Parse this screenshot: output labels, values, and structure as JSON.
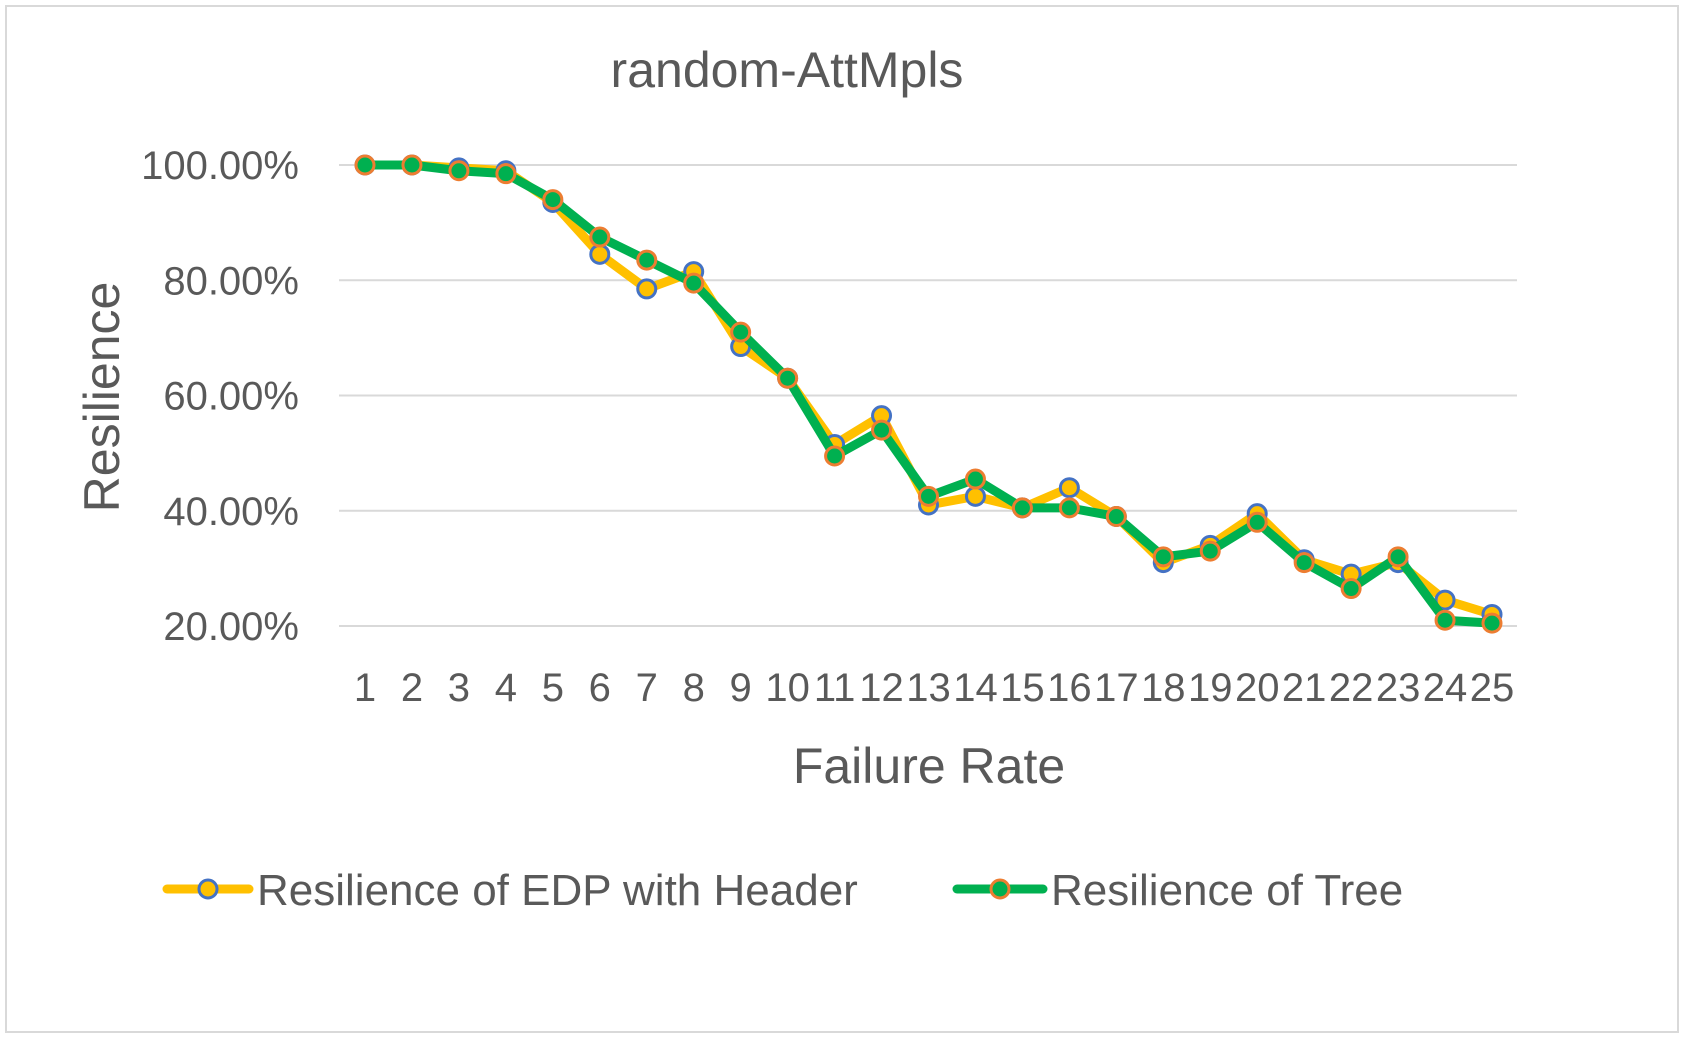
{
  "chart_data": {
    "type": "line",
    "title": "random-AttMpls",
    "xlabel": "Failure Rate",
    "ylabel": "Resilience",
    "categories": [
      "1",
      "2",
      "3",
      "4",
      "5",
      "6",
      "7",
      "8",
      "9",
      "10",
      "11",
      "12",
      "13",
      "14",
      "15",
      "16",
      "17",
      "18",
      "19",
      "20",
      "21",
      "22",
      "23",
      "24",
      "25"
    ],
    "y_ticks": [
      "100.00%",
      "80.00%",
      "60.00%",
      "40.00%",
      "20.00%"
    ],
    "y_tick_values": [
      100,
      80,
      60,
      40,
      20
    ],
    "ylim": [
      20,
      100
    ],
    "grid": true,
    "legend_position": "bottom",
    "series": [
      {
        "name": "Resilience of EDP with Header",
        "line_color": "#FFC000",
        "marker_fill": "#FFC000",
        "marker_edge": "#4472C4",
        "values": [
          100,
          100,
          99.5,
          99,
          93.5,
          84.5,
          78.5,
          81.5,
          68.5,
          63,
          51.5,
          56.5,
          41,
          42.5,
          40.5,
          44,
          39,
          31,
          34,
          39.5,
          31.5,
          29,
          31,
          24.5,
          22
        ]
      },
      {
        "name": "Resilience of Tree",
        "line_color": "#00B050",
        "marker_fill": "#00B050",
        "marker_edge": "#ED7D31",
        "values": [
          100,
          100,
          99,
          98.5,
          94,
          87.5,
          83.5,
          79.5,
          71,
          63,
          49.5,
          54,
          42.5,
          45.5,
          40.5,
          40.5,
          39,
          32,
          33,
          38,
          31,
          26.5,
          32,
          21,
          20.5
        ]
      }
    ]
  }
}
